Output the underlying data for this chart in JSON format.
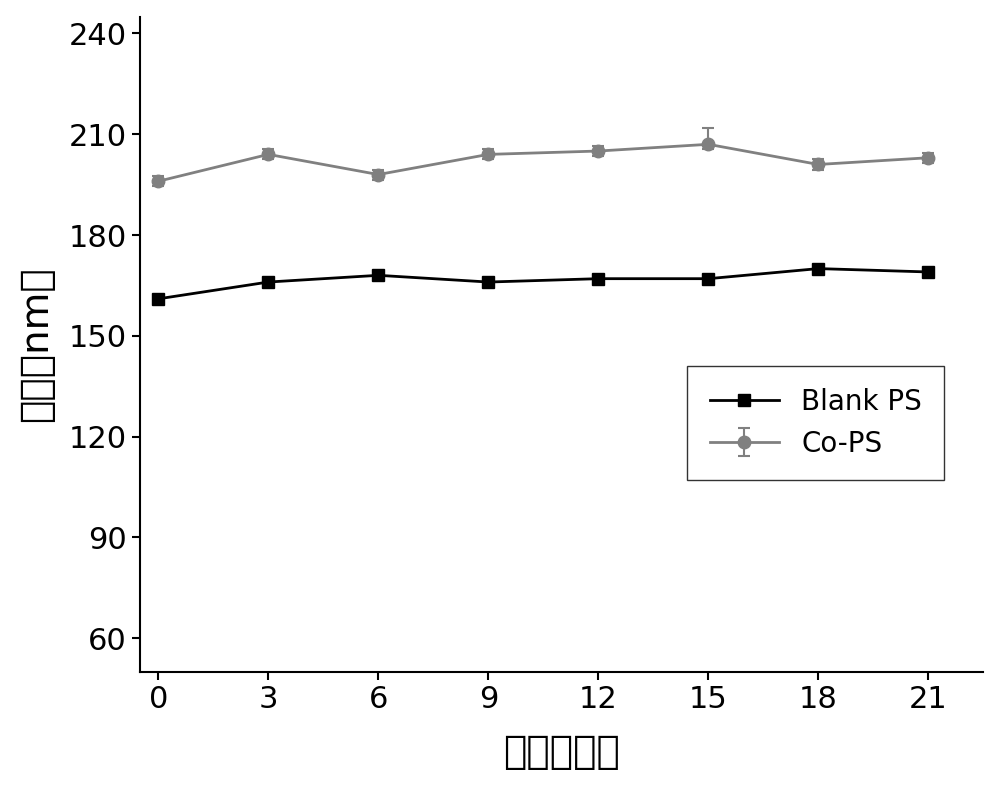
{
  "x": [
    0,
    3,
    6,
    9,
    12,
    15,
    18,
    21
  ],
  "blank_ps_y": [
    161,
    166,
    168,
    166,
    167,
    167,
    170,
    169
  ],
  "co_ps_y": [
    196,
    204,
    198,
    204,
    205,
    207,
    201,
    203
  ],
  "co_ps_err": [
    1.5,
    1.5,
    1.5,
    1.5,
    1.5,
    5.0,
    1.5,
    1.5
  ],
  "xlabel": "时间（天）",
  "ylabel": "直径（nm）",
  "ylim": [
    50,
    245
  ],
  "yticks": [
    60,
    90,
    120,
    150,
    180,
    210,
    240
  ],
  "xticks": [
    0,
    3,
    6,
    9,
    12,
    15,
    18,
    21
  ],
  "line_color_blank": "#000000",
  "line_color_co": "#808080",
  "marker_blank": "s",
  "marker_co": "o",
  "legend_blank": "Blank PS",
  "legend_co": "Co-PS",
  "background_color": "#ffffff",
  "label_fontsize": 28,
  "tick_fontsize": 22,
  "legend_fontsize": 20
}
